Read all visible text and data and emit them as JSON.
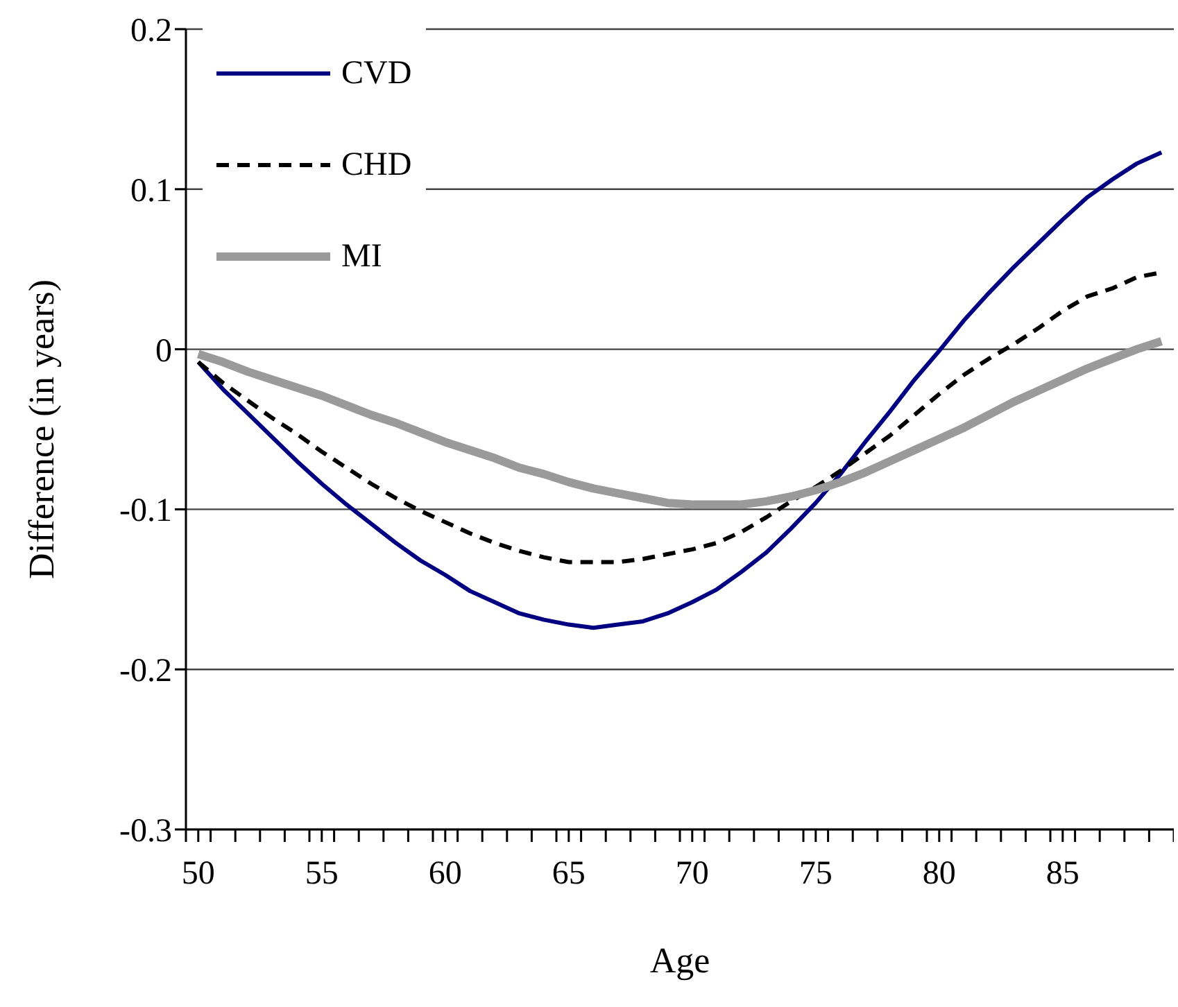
{
  "chart_data": {
    "type": "line",
    "xlabel": "Age",
    "ylabel": "Difference (in years)",
    "x": [
      50,
      51,
      52,
      53,
      54,
      55,
      56,
      57,
      58,
      59,
      60,
      61,
      62,
      63,
      64,
      65,
      66,
      67,
      68,
      69,
      70,
      71,
      72,
      73,
      74,
      75,
      76,
      77,
      78,
      79,
      80,
      81,
      82,
      83,
      84,
      85,
      86,
      87,
      88,
      89
    ],
    "series": [
      {
        "name": "CVD",
        "color": "#000080",
        "line_style": "solid",
        "values": [
          -0.008,
          -0.025,
          -0.04,
          -0.055,
          -0.07,
          -0.084,
          -0.097,
          -0.109,
          -0.121,
          -0.132,
          -0.141,
          -0.151,
          -0.158,
          -0.165,
          -0.169,
          -0.172,
          -0.174,
          -0.172,
          -0.17,
          -0.165,
          -0.158,
          -0.15,
          -0.139,
          -0.127,
          -0.112,
          -0.096,
          -0.078,
          -0.058,
          -0.039,
          -0.019,
          -0.001,
          0.018,
          0.035,
          0.051,
          0.066,
          0.081,
          0.095,
          0.106,
          0.116,
          0.123
        ]
      },
      {
        "name": "CHD",
        "color": "#000000",
        "line_style": "dashed",
        "values": [
          -0.008,
          -0.021,
          -0.032,
          -0.043,
          -0.053,
          -0.064,
          -0.074,
          -0.084,
          -0.093,
          -0.101,
          -0.108,
          -0.115,
          -0.121,
          -0.126,
          -0.13,
          -0.133,
          -0.133,
          -0.133,
          -0.131,
          -0.128,
          -0.125,
          -0.121,
          -0.114,
          -0.105,
          -0.095,
          -0.086,
          -0.076,
          -0.065,
          -0.054,
          -0.041,
          -0.028,
          -0.016,
          -0.006,
          0.003,
          0.013,
          0.024,
          0.033,
          0.038,
          0.045,
          0.048
        ]
      },
      {
        "name": "MI",
        "color": "#9a9a9a",
        "line_style": "solid",
        "values": [
          -0.003,
          -0.008,
          -0.014,
          -0.019,
          -0.024,
          -0.029,
          -0.035,
          -0.041,
          -0.046,
          -0.052,
          -0.058,
          -0.063,
          -0.068,
          -0.074,
          -0.078,
          -0.083,
          -0.087,
          -0.09,
          -0.093,
          -0.096,
          -0.097,
          -0.097,
          -0.097,
          -0.095,
          -0.092,
          -0.088,
          -0.083,
          -0.077,
          -0.07,
          -0.063,
          -0.056,
          -0.049,
          -0.041,
          -0.033,
          -0.026,
          -0.019,
          -0.012,
          -0.006,
          0.0,
          0.005
        ]
      }
    ],
    "xlim": [
      49.5,
      89.5
    ],
    "xticks": [
      {
        "value": 49.5,
        "label": null
      },
      50,
      {
        "value": 50.5,
        "label": null
      },
      {
        "value": 51.5,
        "label": null
      },
      {
        "value": 52.5,
        "label": null
      },
      {
        "value": 53.5,
        "label": null
      },
      {
        "value": 54.5,
        "label": null
      },
      55,
      {
        "value": 55.5,
        "label": null
      },
      {
        "value": 56.5,
        "label": null
      },
      {
        "value": 57.5,
        "label": null
      },
      {
        "value": 58.5,
        "label": null
      },
      {
        "value": 59.5,
        "label": null
      },
      60,
      {
        "value": 60.5,
        "label": null
      },
      {
        "value": 61.5,
        "label": null
      },
      {
        "value": 62.5,
        "label": null
      },
      {
        "value": 63.5,
        "label": null
      },
      {
        "value": 64.5,
        "label": null
      },
      65,
      {
        "value": 65.5,
        "label": null
      },
      {
        "value": 66.5,
        "label": null
      },
      {
        "value": 67.5,
        "label": null
      },
      {
        "value": 68.5,
        "label": null
      },
      {
        "value": 69.5,
        "label": null
      },
      70,
      {
        "value": 70.5,
        "label": null
      },
      {
        "value": 71.5,
        "label": null
      },
      {
        "value": 72.5,
        "label": null
      },
      {
        "value": 73.5,
        "label": null
      },
      {
        "value": 74.5,
        "label": null
      },
      75,
      {
        "value": 75.5,
        "label": null
      },
      {
        "value": 76.5,
        "label": null
      },
      {
        "value": 77.5,
        "label": null
      },
      {
        "value": 78.5,
        "label": null
      },
      {
        "value": 79.5,
        "label": null
      },
      80,
      {
        "value": 80.5,
        "label": null
      },
      {
        "value": 81.5,
        "label": null
      },
      {
        "value": 82.5,
        "label": null
      },
      {
        "value": 83.5,
        "label": null
      },
      {
        "value": 84.5,
        "label": null
      },
      85,
      {
        "value": 85.5,
        "label": null
      },
      {
        "value": 86.5,
        "label": null
      },
      {
        "value": 87.5,
        "label": null
      },
      {
        "value": 88.5,
        "label": null
      },
      {
        "value": 89.5,
        "label": null
      }
    ],
    "ylim": [
      -0.3,
      0.2
    ],
    "yticks": [
      -0.3,
      -0.2,
      -0.1,
      0,
      0.1,
      0.2
    ],
    "grid": "y",
    "legend": "top left"
  }
}
